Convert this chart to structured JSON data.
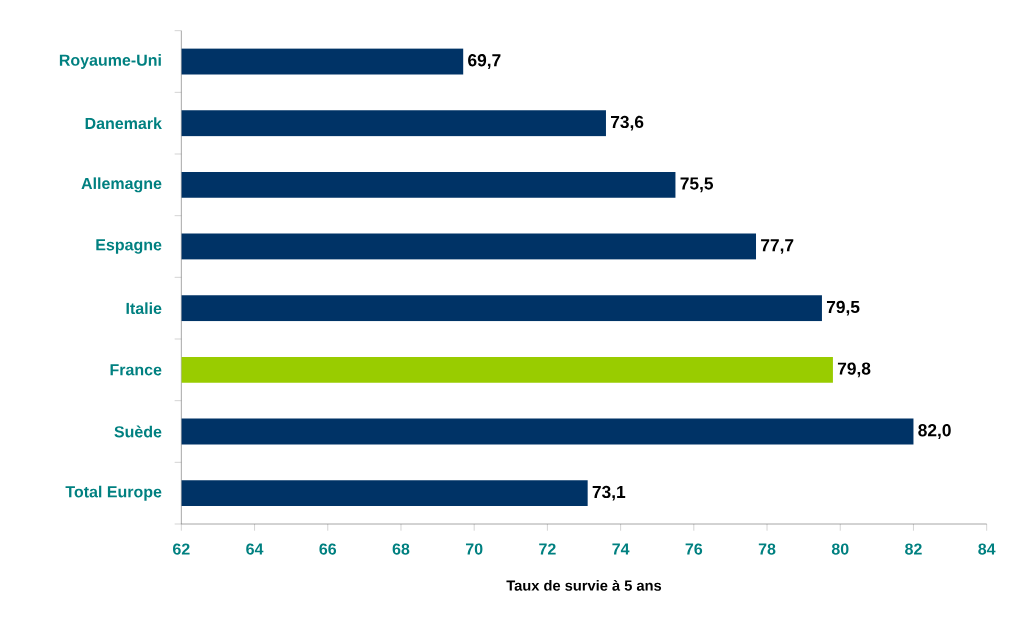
{
  "chart_data": {
    "type": "bar",
    "orientation": "horizontal",
    "xlabel": "Taux de survie à 5 ans",
    "categories": [
      "Royaume-Uni",
      "Danemark",
      "Allemagne",
      "Espagne",
      "Italie",
      "France",
      "Suède",
      "Total Europe"
    ],
    "values": [
      69.7,
      73.6,
      75.5,
      77.7,
      79.5,
      79.8,
      82.0,
      73.1
    ],
    "value_labels": [
      "69,7",
      "73,6",
      "75,5",
      "77,7",
      "79,5",
      "79,8",
      "82,0",
      "73,1"
    ],
    "colors": [
      "#003366",
      "#003366",
      "#003366",
      "#003366",
      "#003366",
      "#99cc00",
      "#003366",
      "#003366"
    ],
    "xlim": [
      62,
      84
    ],
    "xticks": [
      62,
      64,
      66,
      68,
      70,
      72,
      74,
      76,
      78,
      80,
      82,
      84
    ],
    "grid": false
  }
}
